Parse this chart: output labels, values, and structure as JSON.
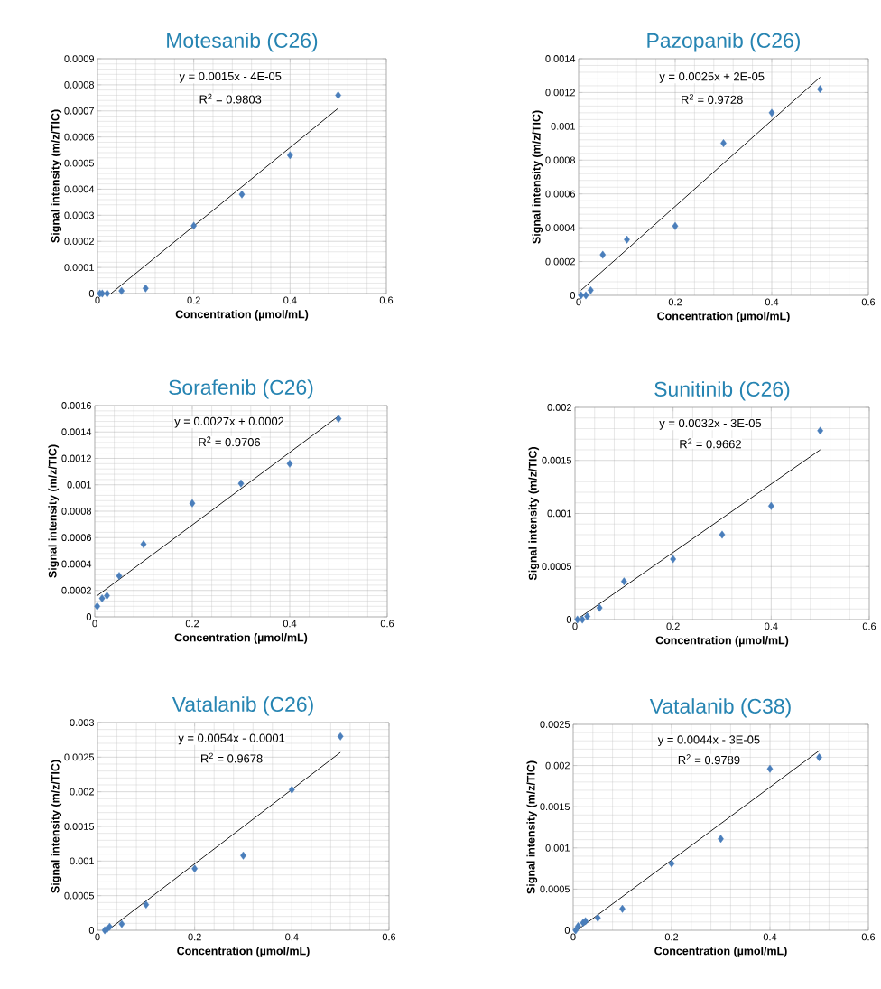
{
  "chart_data": [
    {
      "type": "scatter",
      "title": "Motesanib (C26)",
      "xlabel": "Concentration  (µmol/mL)",
      "ylabel": "Signal intensity  (m/z/TIC)",
      "xlim": [
        0,
        0.6
      ],
      "ylim": [
        0,
        0.0009
      ],
      "xticks": [
        0,
        0.2,
        0.4,
        0.6
      ],
      "yticks": [
        0,
        0.0001,
        0.0002,
        0.0003,
        0.0004,
        0.0005,
        0.0006,
        0.0007,
        0.0008,
        0.0009
      ],
      "grid": true,
      "marker": "diamond",
      "annotations": [
        "y = 0.0015x - 4E-05",
        "R$^{2}$ = 0.9803"
      ],
      "series": [
        {
          "color": "#4a7ebb",
          "x": [
            0.005,
            0.01,
            0.02,
            0.05,
            0.1,
            0.2,
            0.3,
            0.4,
            0.5
          ],
          "values": [
            0,
            0,
            0,
            1e-05,
            2e-05,
            0.00026,
            0.00038,
            0.00053,
            0.00076
          ]
        },
        {
          "type": "line",
          "marker": "none",
          "color": "#000000",
          "x": [
            0.028,
            0.5
          ],
          "values": [
            0,
            0.00071
          ]
        }
      ]
    },
    {
      "type": "scatter",
      "title": "Pazopanib (C26)",
      "xlabel": "Concentration  (µmol/mL)",
      "ylabel": "Signal intensity  (m/z/TIC)",
      "xlim": [
        0,
        0.6
      ],
      "ylim": [
        0,
        0.0014
      ],
      "xticks": [
        0,
        0.2,
        0.4,
        0.6
      ],
      "yticks": [
        0,
        0.0002,
        0.0004,
        0.0006,
        0.0008,
        0.001,
        0.0012,
        0.0014
      ],
      "grid": true,
      "marker": "diamond",
      "annotations": [
        "y = 0.0025x + 2E-05",
        "R$^{2}$ = 0.9728"
      ],
      "series": [
        {
          "color": "#4a7ebb",
          "x": [
            0.005,
            0.015,
            0.025,
            0.05,
            0.1,
            0.2,
            0.3,
            0.4,
            0.5
          ],
          "values": [
            0,
            0,
            3e-05,
            0.00024,
            0.00033,
            0.00041,
            0.0009,
            0.00108,
            0.00122
          ]
        },
        {
          "type": "line",
          "marker": "none",
          "color": "#000000",
          "x": [
            0.005,
            0.5
          ],
          "values": [
            3e-05,
            0.00129
          ]
        }
      ]
    },
    {
      "type": "scatter",
      "title": "Sorafenib (C26)",
      "xlabel": "Concentration  (µmol/mL)",
      "ylabel": "Signal intensity  (m/z/TIC)",
      "xlim": [
        0,
        0.6
      ],
      "ylim": [
        0,
        0.0016
      ],
      "xticks": [
        0,
        0.2,
        0.4,
        0.6
      ],
      "yticks": [
        0,
        0.0002,
        0.0004,
        0.0006,
        0.0008,
        0.001,
        0.0012,
        0.0014,
        0.0016
      ],
      "grid": true,
      "marker": "diamond",
      "annotations": [
        "y = 0.0027x + 0.0002",
        "R$^{2}$ = 0.9706"
      ],
      "series": [
        {
          "color": "#4a7ebb",
          "x": [
            0.005,
            0.015,
            0.025,
            0.05,
            0.1,
            0.2,
            0.3,
            0.4,
            0.5
          ],
          "values": [
            8e-05,
            0.00014,
            0.00016,
            0.00031,
            0.00055,
            0.00086,
            0.00101,
            0.00116,
            0.0015
          ]
        },
        {
          "type": "line",
          "marker": "none",
          "color": "#000000",
          "x": [
            0.005,
            0.5
          ],
          "values": [
            0.00016,
            0.00152
          ]
        }
      ]
    },
    {
      "type": "scatter",
      "title": "Sunitinib (C26)",
      "xlabel": "Concentration  (µmol/mL)",
      "ylabel": "Signal intensity  (m/z/TIC)",
      "xlim": [
        0,
        0.6
      ],
      "ylim": [
        0,
        0.002
      ],
      "xticks": [
        0,
        0.2,
        0.4,
        0.6
      ],
      "yticks": [
        0,
        0.0005,
        0.001,
        0.0015,
        0.002
      ],
      "grid": true,
      "marker": "diamond",
      "annotations": [
        "y = 0.0032x - 3E-05",
        "R$^{2}$ = 0.9662"
      ],
      "series": [
        {
          "color": "#4a7ebb",
          "x": [
            0.005,
            0.015,
            0.025,
            0.05,
            0.1,
            0.2,
            0.3,
            0.4,
            0.5
          ],
          "values": [
            0,
            0,
            3e-05,
            0.00011,
            0.00036,
            0.00057,
            0.0008,
            0.00107,
            0.00178
          ]
        },
        {
          "type": "line",
          "marker": "none",
          "color": "#000000",
          "x": [
            0.01,
            0.5
          ],
          "values": [
            2e-05,
            0.0016
          ]
        }
      ]
    },
    {
      "type": "scatter",
      "title": "Vatalanib (C26)",
      "xlabel": "Concentration  (µmol/mL)",
      "ylabel": "Signal intensity  (m/z/TIC)",
      "xlim": [
        0,
        0.6
      ],
      "ylim": [
        0,
        0.003
      ],
      "xticks": [
        0,
        0.2,
        0.4,
        0.6
      ],
      "yticks": [
        0,
        0.0005,
        0.001,
        0.0015,
        0.002,
        0.0025,
        0.003
      ],
      "grid": true,
      "marker": "diamond",
      "annotations": [
        "y = 0.0054x - 0.0001",
        "R$^{2}$ = 0.9678"
      ],
      "series": [
        {
          "color": "#4a7ebb",
          "x": [
            0.015,
            0.02,
            0.025,
            0.05,
            0.1,
            0.2,
            0.3,
            0.4,
            0.5
          ],
          "values": [
            0,
            2e-05,
            5e-05,
            9e-05,
            0.00037,
            0.00089,
            0.00108,
            0.00203,
            0.0028
          ]
        },
        {
          "type": "line",
          "marker": "none",
          "color": "#000000",
          "x": [
            0.025,
            0.5
          ],
          "values": [
            2e-05,
            0.00257
          ]
        }
      ]
    },
    {
      "type": "scatter",
      "title": "Vatalanib (C38)",
      "xlabel": "Concentration  (µmol/mL)",
      "ylabel": "Signal intensity  (m/z/TIC)",
      "xlim": [
        0,
        0.6
      ],
      "ylim": [
        0,
        0.0025
      ],
      "xticks": [
        0,
        0.2,
        0.4,
        0.6
      ],
      "yticks": [
        0,
        0.0005,
        0.001,
        0.0015,
        0.002,
        0.0025
      ],
      "grid": true,
      "marker": "diamond",
      "annotations": [
        "y = 0.0044x - 3E-05",
        "R$^{2}$ = 0.9789"
      ],
      "series": [
        {
          "color": "#4a7ebb",
          "x": [
            0.005,
            0.01,
            0.02,
            0.025,
            0.05,
            0.1,
            0.2,
            0.3,
            0.4,
            0.5
          ],
          "values": [
            0,
            5e-05,
            9e-05,
            0.00011,
            0.00015,
            0.00026,
            0.00081,
            0.00111,
            0.00196,
            0.0021
          ]
        },
        {
          "type": "line",
          "marker": "none",
          "color": "#000000",
          "x": [
            0.01,
            0.5
          ],
          "values": [
            1e-05,
            0.00218
          ]
        }
      ]
    }
  ]
}
